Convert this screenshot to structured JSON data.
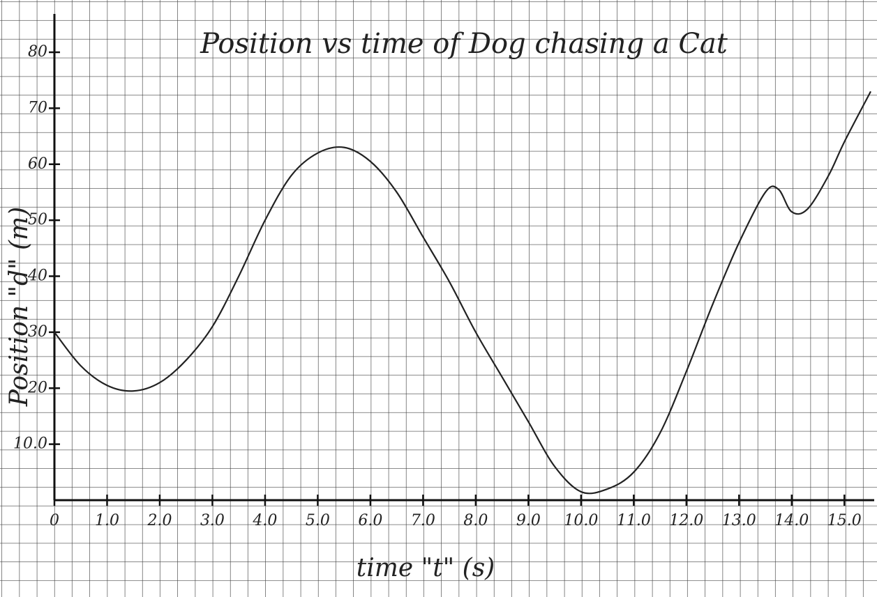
{
  "chart_data": {
    "type": "line",
    "title": "Position vs time of Dog chasing a Cat",
    "x_label": "time \"t\" (s)",
    "y_label": "Position \"d\" (m)",
    "x": [
      0,
      0.5,
      1,
      1.5,
      2,
      2.5,
      3,
      3.5,
      4,
      4.5,
      5,
      5.5,
      6,
      6.5,
      7,
      7.5,
      8,
      8.5,
      9,
      9.5,
      10,
      10.5,
      11,
      11.5,
      12,
      12.5,
      13,
      13.5,
      13.75,
      14,
      14.3,
      14.7,
      15,
      15.5
    ],
    "values": [
      30,
      24,
      20.5,
      19.5,
      21,
      25,
      31,
      40,
      50,
      58,
      62,
      63,
      60.5,
      55,
      47,
      39,
      30,
      22,
      14,
      6,
      1.5,
      2,
      5,
      12,
      23,
      35,
      46,
      55,
      55.5,
      51.5,
      52,
      58,
      64,
      73
    ],
    "color": "#222222",
    "xlim": [
      0,
      15.5
    ],
    "ylim": [
      0,
      80
    ],
    "xticks": [
      0,
      {
        "value": 1,
        "label": "1.0"
      },
      {
        "value": 2,
        "label": "2.0"
      },
      {
        "value": 3,
        "label": "3.0"
      },
      {
        "value": 4,
        "label": "4.0"
      },
      {
        "value": 5,
        "label": "5.0"
      },
      {
        "value": 6,
        "label": "6.0"
      },
      {
        "value": 7,
        "label": "7.0"
      },
      {
        "value": 8,
        "label": "8.0"
      },
      {
        "value": 9,
        "label": "9.0"
      },
      {
        "value": 10,
        "label": "10.0"
      },
      {
        "value": 11,
        "label": "11.0"
      },
      {
        "value": 12,
        "label": "12.0"
      },
      {
        "value": 13,
        "label": "13.0"
      },
      {
        "value": 14,
        "label": "14.0"
      },
      {
        "value": 15,
        "label": "15.0"
      }
    ],
    "yticks": [
      {
        "value": 10,
        "label": "10.0"
      },
      20,
      30,
      40,
      50,
      60,
      70,
      80
    ],
    "grid": false
  }
}
